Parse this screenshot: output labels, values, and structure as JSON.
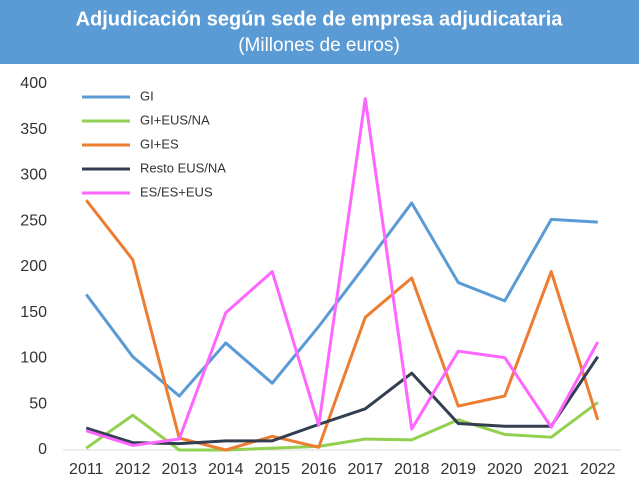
{
  "chart_data": {
    "type": "line",
    "title": "Adjudicación según sede de empresa adjudicataria",
    "subtitle": "(Millones de euros)",
    "categories": [
      "2011",
      "2012",
      "2013",
      "2014",
      "2015",
      "2016",
      "2017",
      "2018",
      "2019",
      "2020",
      "2021",
      "2022"
    ],
    "series": [
      {
        "name": "GI",
        "color": "#5b9bd5",
        "values": [
          170,
          102,
          59,
          117,
          73,
          135,
          202,
          270,
          183,
          163,
          252,
          249
        ]
      },
      {
        "name": "GI+EUS/NA",
        "color": "#92d050",
        "values": [
          2,
          38,
          0,
          0,
          2,
          4,
          12,
          11,
          33,
          17,
          14,
          52
        ]
      },
      {
        "name": "GI+ES",
        "color": "#ed7d31",
        "values": [
          273,
          208,
          13,
          0,
          15,
          3,
          145,
          188,
          48,
          59,
          195,
          33
        ]
      },
      {
        "name": "Resto EUS/NA",
        "color": "#333f50",
        "values": [
          24,
          8,
          7,
          10,
          10,
          28,
          45,
          84,
          29,
          26,
          26,
          102
        ]
      },
      {
        "name": "ES/ES+EUS",
        "color": "#ff66ff",
        "values": [
          21,
          5,
          12,
          150,
          195,
          27,
          384,
          23,
          108,
          101,
          25,
          118
        ]
      }
    ],
    "ylim": [
      0,
      400
    ],
    "yticks": [
      0,
      50,
      100,
      150,
      200,
      250,
      300,
      350,
      400
    ],
    "grid": false,
    "legend": "top-left"
  }
}
